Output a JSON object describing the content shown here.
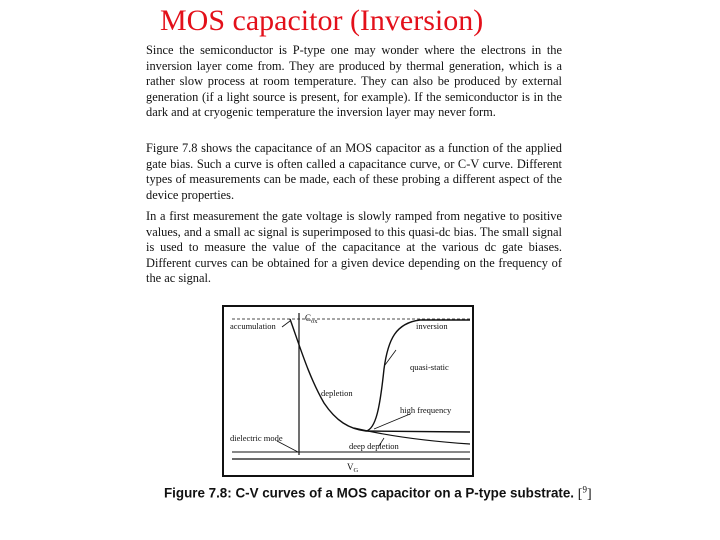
{
  "slide": {
    "title": "MOS capacitor (Inversion)",
    "title_color": "#e3101a"
  },
  "paragraphs": [
    "Since the semiconductor is P-type one may wonder where the electrons in the inversion layer come from. They are produced by thermal generation, which is a rather slow process at room temperature. They can also be produced by external generation (if a light source is present, for example). If the semiconductor is in the dark and at cryogenic temperature the inversion layer may never form.",
    "Figure 7.8 shows the capacitance of an MOS capacitor as a function of the applied gate bias. Such a curve is often called a capacitance curve, or C-V curve. Different types of measurements can be made, each of these probing a different aspect of the device properties.",
    "In a first measurement the gate voltage is slowly ramped from negative to positive values, and a small ac signal is superimposed to this quasi-dc bias. The small signal is used to measure the value of the capacitance at the various dc gate biases. Different curves can be obtained for a given device depending on the frequency of the ac signal."
  ],
  "figure": {
    "labels": {
      "accumulation": "accumulation",
      "cox": "C",
      "cox_sub": "ox",
      "inversion": "inversion",
      "quasi_static": "quasi-static",
      "depletion": "depletion",
      "high_frequency": "high frequency",
      "dielectric_mode": "dielectric mode",
      "deep_depletion": "deep depletion",
      "vg": "V",
      "vg_sub": "G"
    },
    "caption_prefix": "Figure 7.8",
    "caption_text": ": C-V curves of a MOS capacitor on a P-type substrate.",
    "citation_open": "[",
    "citation_num": "9",
    "citation_close": "]"
  }
}
